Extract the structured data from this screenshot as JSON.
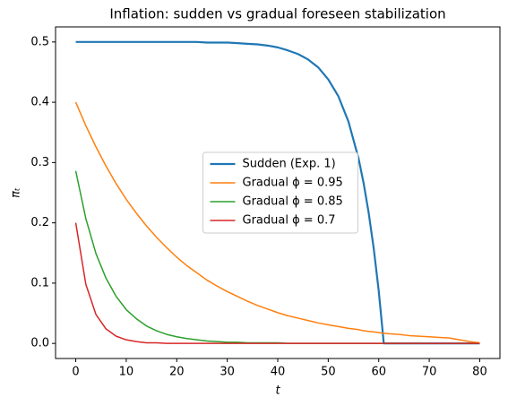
{
  "chart_data": {
    "type": "line",
    "title": "Inflation: sudden vs gradual foreseen stabilization",
    "xlabel": "t",
    "ylabel": "πₜ",
    "x": [
      0,
      2,
      4,
      6,
      8,
      10,
      12,
      14,
      16,
      18,
      20,
      22,
      24,
      26,
      28,
      30,
      32,
      34,
      36,
      38,
      40,
      42,
      44,
      46,
      48,
      50,
      52,
      54,
      56,
      57,
      58,
      59,
      60,
      61,
      62,
      64,
      66,
      68,
      70,
      72,
      74,
      76,
      78,
      80
    ],
    "series": [
      {
        "name": "Sudden (Exp. 1)",
        "color": "#1f77b4",
        "linewidth": 2.2,
        "values": [
          0.5,
          0.5,
          0.5,
          0.5,
          0.5,
          0.5,
          0.5,
          0.5,
          0.5,
          0.5,
          0.5,
          0.5,
          0.5,
          0.499,
          0.499,
          0.499,
          0.498,
          0.497,
          0.496,
          0.494,
          0.491,
          0.486,
          0.48,
          0.471,
          0.458,
          0.438,
          0.41,
          0.368,
          0.307,
          0.266,
          0.217,
          0.158,
          0.087,
          0,
          0,
          0,
          0,
          0,
          0,
          0,
          0,
          0,
          0,
          0
        ]
      },
      {
        "name": "Gradual ϕ = 0.95",
        "color": "#ff7f0e",
        "linewidth": 1.5,
        "values": [
          0.4,
          0.361,
          0.326,
          0.294,
          0.265,
          0.239,
          0.216,
          0.195,
          0.176,
          0.159,
          0.143,
          0.129,
          0.117,
          0.105,
          0.095,
          0.086,
          0.078,
          0.07,
          0.063,
          0.057,
          0.051,
          0.046,
          0.042,
          0.038,
          0.034,
          0.031,
          0.028,
          0.025,
          0.023,
          0.021,
          0.02,
          0.019,
          0.018,
          0.017,
          0.016,
          0.015,
          0.013,
          0.012,
          0.011,
          0.01,
          0.009,
          0.006,
          0.003,
          0.001
        ]
      },
      {
        "name": "Gradual ϕ = 0.85",
        "color": "#2ca02c",
        "linewidth": 1.5,
        "values": [
          0.286,
          0.207,
          0.149,
          0.108,
          0.078,
          0.056,
          0.041,
          0.029,
          0.021,
          0.015,
          0.011,
          0.008,
          0.006,
          0.004,
          0.003,
          0.002,
          0.002,
          0.001,
          0.001,
          0.001,
          0.001,
          0,
          0,
          0,
          0,
          0,
          0,
          0,
          0,
          0,
          0,
          0,
          0,
          0,
          0,
          0,
          0,
          0,
          0,
          0,
          0,
          0,
          0,
          0
        ]
      },
      {
        "name": "Gradual ϕ = 0.7",
        "color": "#d62728",
        "linewidth": 1.5,
        "values": [
          0.2,
          0.098,
          0.048,
          0.024,
          0.012,
          0.006,
          0.003,
          0.001,
          0.001,
          0,
          0,
          0,
          0,
          0,
          0,
          0,
          0,
          0,
          0,
          0,
          0,
          0,
          0,
          0,
          0,
          0,
          0,
          0,
          0,
          0,
          0,
          0,
          0,
          0,
          0,
          0,
          0,
          0,
          0,
          0,
          0,
          0,
          0,
          0
        ]
      }
    ],
    "xlim": [
      -4,
      84
    ],
    "xticks": [
      0,
      10,
      20,
      30,
      40,
      50,
      60,
      70,
      80
    ],
    "ylim": [
      -0.025,
      0.525
    ],
    "yticks": [
      {
        "value": 0,
        "label": "0.0"
      },
      0.1,
      0.2,
      0.3,
      0.4,
      0.5
    ],
    "legend": "center",
    "grid": false
  }
}
